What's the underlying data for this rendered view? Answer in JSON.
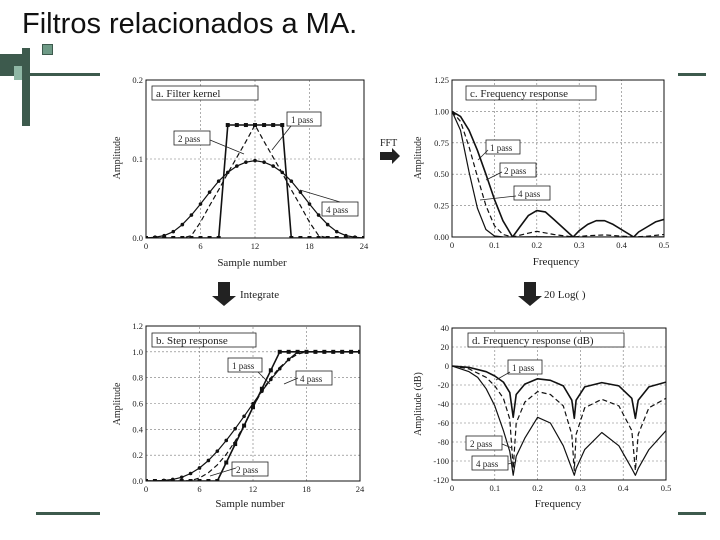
{
  "slide": {
    "title": "Filtros relacionados a MA."
  },
  "colors": {
    "accent_dark": "#3d5a4d",
    "accent_light": "#8fb7a5",
    "ink": "#222222"
  },
  "arrows": {
    "fft": "FFT",
    "integrate": "Integrate",
    "log": "20 Log( )"
  },
  "chart_data": [
    {
      "type": "line",
      "title": "a.  Filter kernel",
      "xlabel": "Sample number",
      "ylabel": "Amplitude",
      "xlim": [
        0,
        24
      ],
      "ylim": [
        0,
        0.2
      ],
      "xticks": [
        "0",
        "6",
        "12",
        "18",
        "24"
      ],
      "yticks": [
        "0.0",
        "0.1",
        "0.2"
      ],
      "grid": true,
      "series": [
        {
          "name": "1 pass",
          "x": [
            0,
            1,
            2,
            3,
            4,
            5,
            6,
            7,
            8,
            9,
            10,
            11,
            12,
            13,
            14,
            15,
            16,
            17,
            18,
            19,
            20,
            21,
            22,
            23,
            24
          ],
          "y": [
            0,
            0,
            0,
            0,
            0,
            0,
            0,
            0,
            0,
            0.143,
            0.143,
            0.143,
            0.143,
            0.143,
            0.143,
            0.143,
            0,
            0,
            0,
            0,
            0,
            0,
            0,
            0,
            0
          ]
        },
        {
          "name": "2 pass",
          "x": [
            0,
            1,
            2,
            3,
            4,
            5,
            6,
            7,
            8,
            9,
            10,
            11,
            12,
            13,
            14,
            15,
            16,
            17,
            18,
            19,
            20,
            21,
            22,
            23,
            24
          ],
          "y": [
            0,
            0,
            0,
            0,
            0,
            0.003,
            0.02,
            0.041,
            0.061,
            0.082,
            0.102,
            0.122,
            0.143,
            0.122,
            0.102,
            0.082,
            0.061,
            0.041,
            0.02,
            0.003,
            0,
            0,
            0,
            0,
            0
          ]
        },
        {
          "name": "4 pass",
          "x": [
            0,
            1,
            2,
            3,
            4,
            5,
            6,
            7,
            8,
            9,
            10,
            11,
            12,
            13,
            14,
            15,
            16,
            17,
            18,
            19,
            20,
            21,
            22,
            23,
            24
          ],
          "y": [
            0,
            0.001,
            0.003,
            0.008,
            0.017,
            0.029,
            0.043,
            0.058,
            0.072,
            0.083,
            0.091,
            0.096,
            0.098,
            0.096,
            0.091,
            0.083,
            0.072,
            0.058,
            0.043,
            0.029,
            0.017,
            0.008,
            0.003,
            0.001,
            0
          ]
        }
      ]
    },
    {
      "type": "line",
      "title": "c.  Frequency response",
      "xlabel": "Frequency",
      "ylabel": "Amplitude",
      "xlim": [
        0,
        0.5
      ],
      "ylim": [
        0,
        1.25
      ],
      "xticks": [
        "0",
        "0.1",
        "0.2",
        "0.3",
        "0.4",
        "0.5"
      ],
      "yticks": [
        "0.00",
        "0.25",
        "0.50",
        "0.75",
        "1.00",
        "1.25"
      ],
      "grid": true,
      "series": [
        {
          "name": "1 pass",
          "x": [
            0,
            0.02,
            0.04,
            0.06,
            0.08,
            0.1,
            0.12,
            0.1429,
            0.16,
            0.18,
            0.2,
            0.22,
            0.24,
            0.2857,
            0.3,
            0.32,
            0.34,
            0.36,
            0.38,
            0.4286,
            0.44,
            0.46,
            0.48,
            0.5
          ],
          "y": [
            1,
            0.96,
            0.85,
            0.69,
            0.5,
            0.3,
            0.13,
            0,
            0.08,
            0.17,
            0.21,
            0.2,
            0.14,
            0,
            0.05,
            0.1,
            0.13,
            0.13,
            0.1,
            0,
            0.04,
            0.08,
            0.12,
            0.14
          ]
        },
        {
          "name": "2 pass",
          "x": [
            0,
            0.02,
            0.04,
            0.06,
            0.08,
            0.1,
            0.12,
            0.1429,
            0.18,
            0.2,
            0.24,
            0.2857,
            0.32,
            0.36,
            0.4286,
            0.46,
            0.5
          ],
          "y": [
            1,
            0.92,
            0.72,
            0.48,
            0.25,
            0.09,
            0.02,
            0,
            0.03,
            0.045,
            0.02,
            0,
            0.01,
            0.017,
            0,
            0.006,
            0.02
          ]
        },
        {
          "name": "4 pass",
          "x": [
            0,
            0.02,
            0.04,
            0.06,
            0.08,
            0.1,
            0.12,
            0.1429,
            0.2,
            0.2857,
            0.36,
            0.4286,
            0.5
          ],
          "y": [
            1,
            0.85,
            0.52,
            0.23,
            0.06,
            0.008,
            0.0004,
            0,
            0.002,
            0,
            0.0003,
            0,
            0.0004
          ]
        }
      ]
    },
    {
      "type": "line",
      "title": "b.  Step response",
      "xlabel": "Sample number",
      "ylabel": "Amplitude",
      "xlim": [
        0,
        24
      ],
      "ylim": [
        0,
        1.2
      ],
      "xticks": [
        "0",
        "6",
        "12",
        "18",
        "24"
      ],
      "yticks": [
        "0.0",
        "0.2",
        "0.4",
        "0.6",
        "0.8",
        "1.0",
        "1.2"
      ],
      "grid": true,
      "series": [
        {
          "name": "1 pass",
          "x": [
            0,
            1,
            2,
            3,
            4,
            5,
            6,
            7,
            8,
            9,
            10,
            11,
            12,
            13,
            14,
            15,
            16,
            17,
            18,
            19,
            20,
            21,
            22,
            23,
            24
          ],
          "y": [
            0,
            0,
            0,
            0,
            0,
            0,
            0,
            0,
            0,
            0.143,
            0.286,
            0.429,
            0.571,
            0.714,
            0.857,
            1,
            1,
            1,
            1,
            1,
            1,
            1,
            1,
            1,
            1
          ]
        },
        {
          "name": "2 pass",
          "x": [
            0,
            1,
            2,
            3,
            4,
            5,
            6,
            7,
            8,
            9,
            10,
            11,
            12,
            13,
            14,
            15,
            16,
            17,
            18,
            19,
            20,
            21,
            22,
            23,
            24
          ],
          "y": [
            0,
            0,
            0,
            0,
            0,
            0.003,
            0.023,
            0.064,
            0.125,
            0.207,
            0.309,
            0.431,
            0.574,
            0.696,
            0.798,
            0.88,
            0.941,
            0.982,
            1,
            1,
            1,
            1,
            1,
            1,
            1
          ]
        },
        {
          "name": "4 pass",
          "x": [
            0,
            1,
            2,
            3,
            4,
            5,
            6,
            7,
            8,
            9,
            10,
            11,
            12,
            13,
            14,
            15,
            16,
            17,
            18,
            19,
            20,
            21,
            22,
            23,
            24
          ],
          "y": [
            0,
            0.001,
            0.004,
            0.012,
            0.029,
            0.058,
            0.101,
            0.159,
            0.231,
            0.314,
            0.405,
            0.501,
            0.599,
            0.695,
            0.786,
            0.869,
            0.941,
            0.999,
            1,
            1,
            1,
            1,
            1,
            1,
            1
          ]
        }
      ]
    },
    {
      "type": "line",
      "title": "d.  Frequency response (dB)",
      "xlabel": "Frequency",
      "ylabel": "Amplitude (dB)",
      "xlim": [
        0,
        0.5
      ],
      "ylim": [
        -120,
        40
      ],
      "xticks": [
        "0",
        "0.1",
        "0.2",
        "0.3",
        "0.4",
        "0.5"
      ],
      "yticks": [
        "-120",
        "-100",
        "-80",
        "-60",
        "-40",
        "-20",
        "0",
        "20",
        "40"
      ],
      "grid": true,
      "series": [
        {
          "name": "1 pass",
          "x": [
            0,
            0.04,
            0.08,
            0.1,
            0.12,
            0.135,
            0.1429,
            0.15,
            0.17,
            0.2,
            0.23,
            0.26,
            0.28,
            0.2857,
            0.29,
            0.31,
            0.35,
            0.39,
            0.42,
            0.4286,
            0.435,
            0.46,
            0.5
          ],
          "y": [
            0,
            -1.5,
            -6,
            -10.5,
            -17,
            -28,
            -54,
            -30,
            -19,
            -13.5,
            -15,
            -21,
            -36,
            -55,
            -36,
            -22,
            -17.5,
            -21,
            -34,
            -55,
            -36,
            -22,
            -17
          ]
        },
        {
          "name": "2 pass",
          "x": [
            0,
            0.04,
            0.08,
            0.1,
            0.12,
            0.135,
            0.1429,
            0.15,
            0.17,
            0.2,
            0.23,
            0.26,
            0.28,
            0.2857,
            0.29,
            0.31,
            0.35,
            0.39,
            0.42,
            0.4286,
            0.435,
            0.46,
            0.5
          ],
          "y": [
            0,
            -3,
            -12,
            -21,
            -34,
            -56,
            -108,
            -60,
            -38,
            -27,
            -30,
            -42,
            -72,
            -110,
            -72,
            -44,
            -35,
            -42,
            -68,
            -110,
            -72,
            -44,
            -34
          ]
        },
        {
          "name": "4 pass",
          "x": [
            0,
            0.04,
            0.06,
            0.08,
            0.1,
            0.12,
            0.135,
            0.1429,
            0.15,
            0.17,
            0.2,
            0.23,
            0.26,
            0.28,
            0.2857,
            0.29,
            0.31,
            0.35,
            0.39,
            0.42,
            0.4286,
            0.435,
            0.46,
            0.5
          ],
          "y": [
            0,
            -6,
            -12,
            -24,
            -42,
            -68,
            -90,
            -115,
            -95,
            -76,
            -54,
            -60,
            -84,
            -108,
            -115,
            -108,
            -88,
            -70,
            -84,
            -108,
            -115,
            -108,
            -88,
            -68
          ]
        }
      ]
    }
  ]
}
